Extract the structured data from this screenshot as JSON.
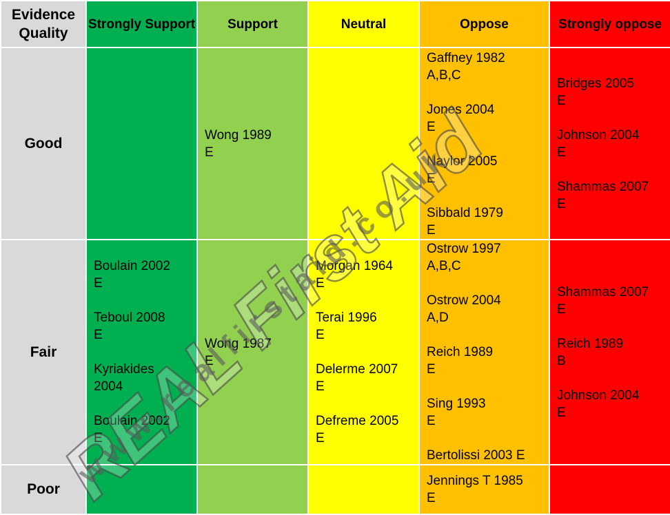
{
  "headers": {
    "quality": "Evidence Quality",
    "strongly_support": "Strongly Support",
    "support": "Support",
    "neutral": "Neutral",
    "oppose": "Oppose",
    "strongly_oppose": "Strongly oppose"
  },
  "rows": {
    "good": {
      "label": "Good",
      "support": [
        {
          "ref": "Wong 1989",
          "grade": "E"
        }
      ],
      "oppose": [
        {
          "ref": "Gaffney 1982",
          "grade": "A,B,C"
        },
        {
          "ref": "Jones 2004",
          "grade": "E"
        },
        {
          "ref": "Naylor 2005",
          "grade": "E"
        },
        {
          "ref": "Sibbald 1979",
          "grade": "E"
        }
      ],
      "strongly_oppose": [
        {
          "ref": "Bridges 2005",
          "grade": "E"
        },
        {
          "ref": "Johnson 2004",
          "grade": "E"
        },
        {
          "ref": "Shammas 2007",
          "grade": "E"
        }
      ]
    },
    "fair": {
      "label": "Fair",
      "strongly_support": [
        {
          "ref": "Boulain 2002",
          "grade": "E"
        },
        {
          "ref": "Teboul 2008",
          "grade": "E"
        },
        {
          "ref": "Kyriakides",
          "grade": "2004"
        },
        {
          "ref": "Boulain 2002",
          "grade": "E"
        }
      ],
      "support": [
        {
          "ref": "Wong 1987",
          "grade": "E"
        }
      ],
      "neutral": [
        {
          "ref": "Morgan 1964",
          "grade": "E"
        },
        {
          "ref": "Terai 1996",
          "grade": "E"
        },
        {
          "ref": "Delerme 2007",
          "grade": "E"
        },
        {
          "ref": "Defreme 2005",
          "grade": "E"
        }
      ],
      "oppose": [
        {
          "ref": "Ostrow 1997",
          "grade": "A,B,C"
        },
        {
          "ref": "Ostrow 2004",
          "grade": "A,D"
        },
        {
          "ref": "Reich 1989",
          "grade": "E"
        },
        {
          "ref": "Sing 1993",
          "grade": "E"
        },
        {
          "ref": "Bertolissi 2003 E",
          "grade": ""
        }
      ],
      "strongly_oppose": [
        {
          "ref": "Shammas 2007",
          "grade": "E"
        },
        {
          "ref": "Reich 1989",
          "grade": "B"
        },
        {
          "ref": "Johnson 2004",
          "grade": "E"
        }
      ]
    },
    "poor": {
      "label": "Poor",
      "oppose": [
        {
          "ref": "Jennings T 1985",
          "grade": "E"
        }
      ]
    }
  },
  "watermark": {
    "brand": "REAL First Aid",
    "url": "www.realfirstaid.co.uk"
  },
  "colors": {
    "quality": "#d9d9d9",
    "strongly_support": "#00b050",
    "support": "#92d050",
    "neutral": "#ffff00",
    "oppose": "#ffc000",
    "strongly_oppose": "#ff0000"
  }
}
